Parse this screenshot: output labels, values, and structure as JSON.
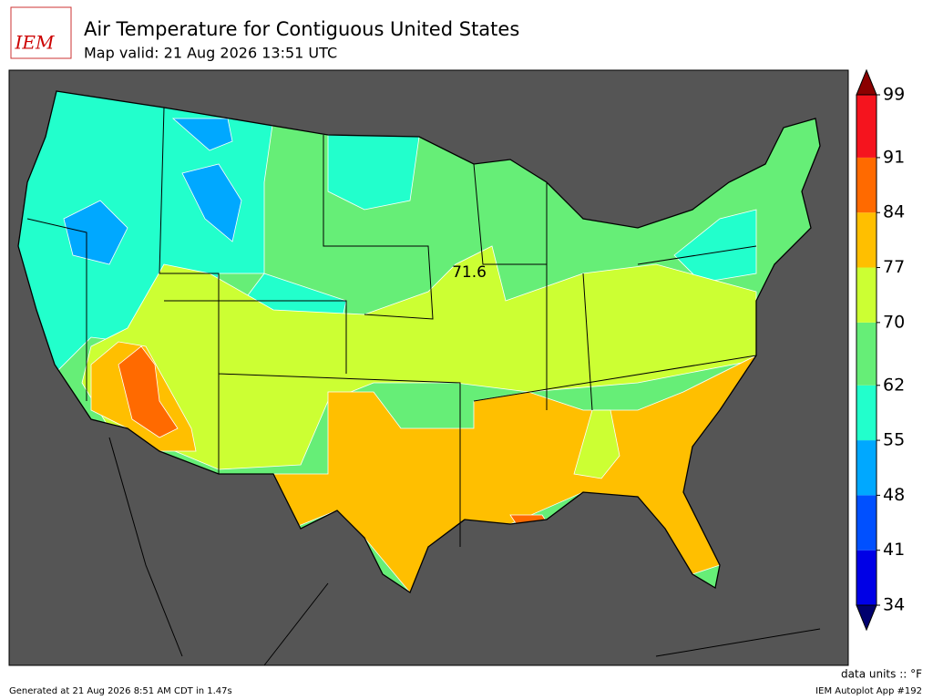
{
  "header": {
    "logo": "IEM",
    "title": "Air Temperature for Contiguous United States",
    "subtitle": "Map valid: 21 Aug 2026 13:51 UTC"
  },
  "map": {
    "annotation": 71.6
  },
  "colorbar": {
    "levels": [
      34,
      41,
      48,
      55,
      62,
      70,
      77,
      84,
      91,
      99
    ],
    "colors": [
      "#0000e6",
      "#0050ff",
      "#00a8ff",
      "#22ffcc",
      "#66ee77",
      "#ccff33",
      "#ffbf00",
      "#ff6a00",
      "#f5141e"
    ],
    "under_color": "#00006e",
    "over_color": "#8b0000",
    "units": "data units :: °F"
  },
  "footer": {
    "left": "Generated at 21 Aug 2026 8:51 AM CDT in 1.47s",
    "right": "IEM Autoplot App #192"
  }
}
